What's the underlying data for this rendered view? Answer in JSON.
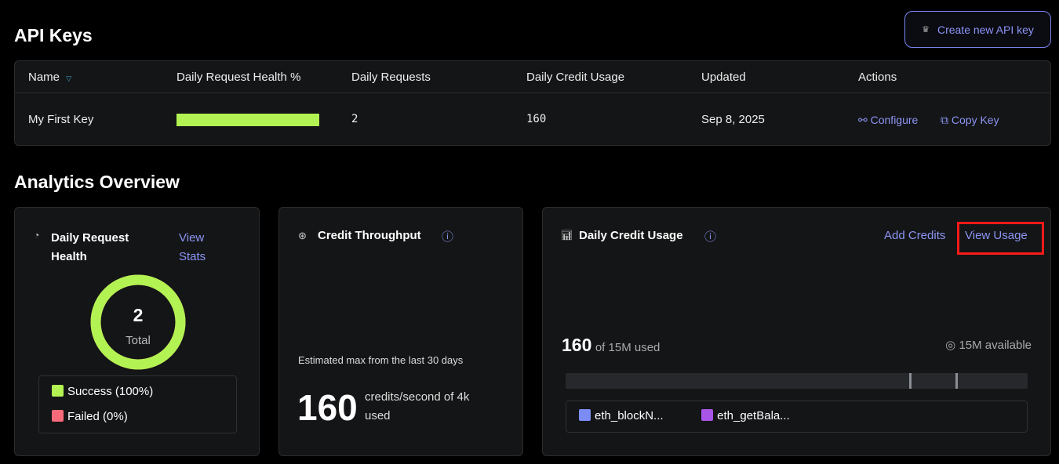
{
  "header": {
    "title": "API Keys",
    "create_button": "Create new API key"
  },
  "table": {
    "columns": [
      "Name",
      "Daily Request Health %",
      "Daily Requests",
      "Daily Credit Usage",
      "Updated",
      "Actions"
    ],
    "rows": [
      {
        "name": "My First Key",
        "health_percent": 100,
        "requests": "2",
        "credit_usage": "160",
        "updated": "Sep 8, 2025",
        "configure": "Configure",
        "copy": "Copy Key"
      }
    ]
  },
  "analytics": {
    "title": "Analytics Overview",
    "health": {
      "title_line1": "Daily Request",
      "title_line2": "Health",
      "link_line1": "View",
      "link_line2": "Stats",
      "total": "2",
      "total_label": "Total",
      "success_percent": 100,
      "legend": [
        {
          "label": "Success (100%)",
          "color": "#b2f252"
        },
        {
          "label": "Failed (0%)",
          "color": "#f76a7a"
        }
      ]
    },
    "throughput": {
      "title": "Credit Throughput",
      "caption": "Estimated max from the last 30 days",
      "value": "160",
      "unit_line1": "credits/second of 4k",
      "unit_line2": "used"
    },
    "credit": {
      "title": "Daily Credit Usage",
      "add_credits": "Add Credits",
      "view_usage": "View Usage",
      "used": "160",
      "used_suffix": "of 15M used",
      "available": "15M available",
      "legend": [
        {
          "label": "eth_blockN...",
          "color": "#7b8cf5"
        },
        {
          "label": "eth_getBala...",
          "color": "#a855e8"
        }
      ]
    }
  },
  "colors": {
    "accent": "#8c95f5",
    "success": "#b2f252",
    "highlight": "#ff1a1a"
  }
}
